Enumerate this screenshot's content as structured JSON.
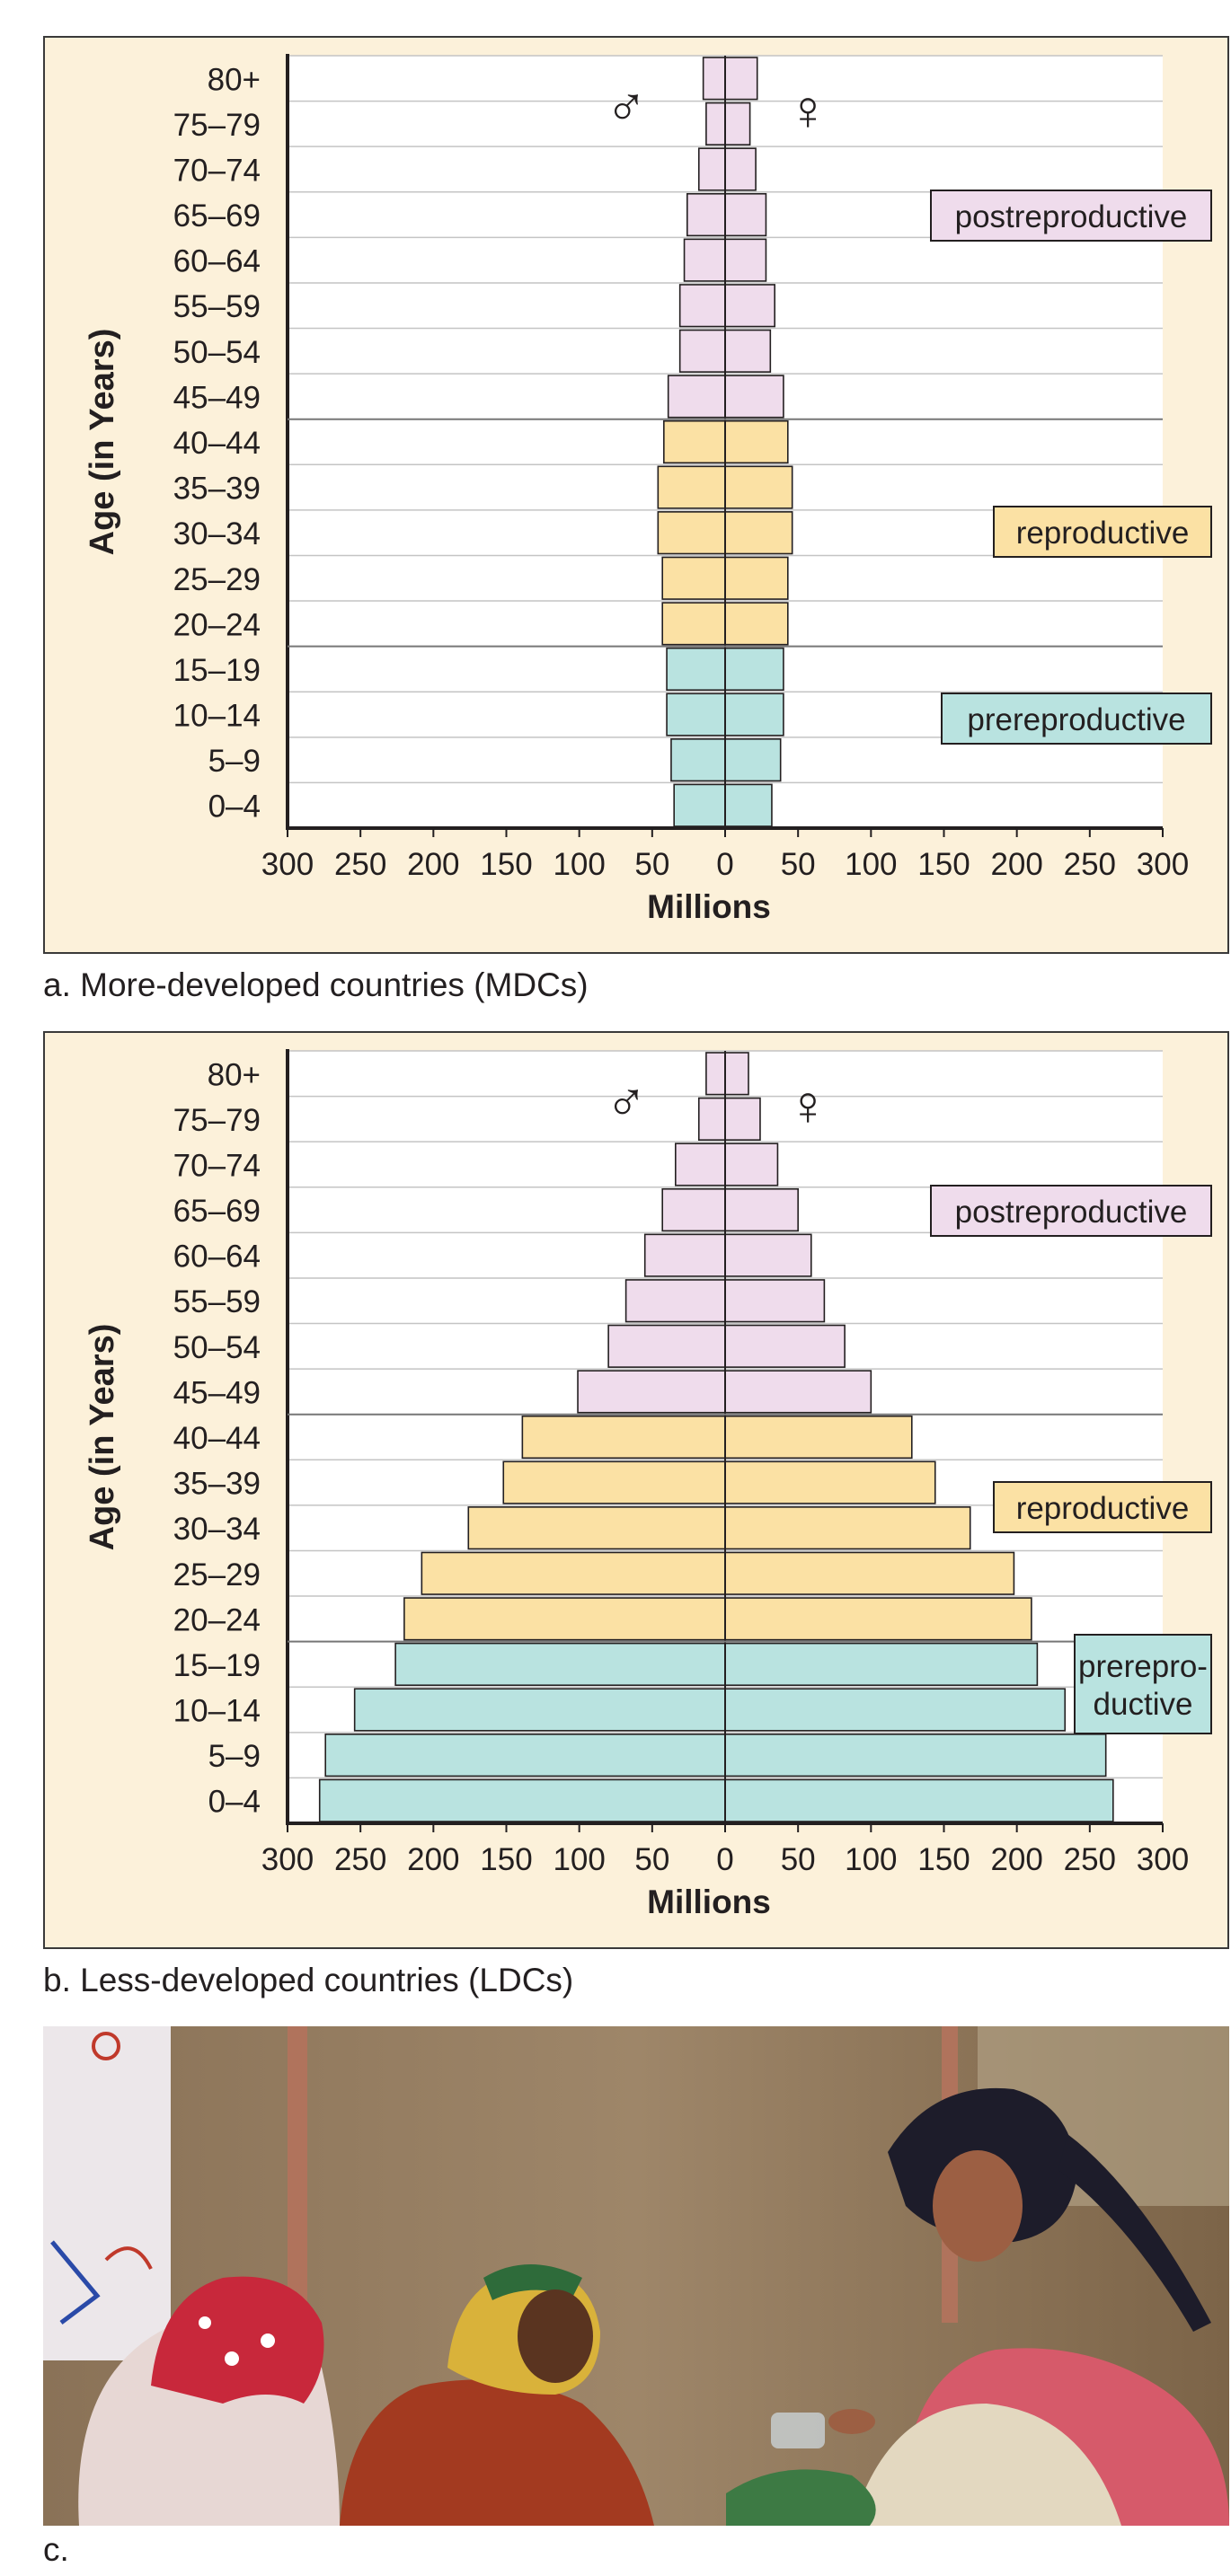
{
  "charts": [
    {
      "caption": "a. More-developed countries (MDCs)",
      "chart_data": {
        "type": "bar",
        "subtype": "population-pyramid",
        "title": "",
        "ylabel": "Age (in Years)",
        "xlabel": "Millions",
        "xlim": [
          -300,
          300
        ],
        "x_tick_labels": [
          "300",
          "250",
          "200",
          "150",
          "100",
          "50",
          "0",
          "50",
          "100",
          "150",
          "200",
          "250",
          "300"
        ],
        "categories": [
          "80+",
          "75–79",
          "70–74",
          "65–69",
          "60–64",
          "55–59",
          "50–54",
          "45–49",
          "40–44",
          "35–39",
          "30–34",
          "25–29",
          "20–24",
          "15–19",
          "10–14",
          "5–9",
          "0–4"
        ],
        "series": [
          {
            "symbol": "♂",
            "values": [
              15,
              13,
              18,
              26,
              28,
              31,
              31,
              39,
              42,
              46,
              46,
              43,
              43,
              40,
              40,
              37,
              35
            ]
          },
          {
            "symbol": "♀",
            "values": [
              22,
              17,
              21,
              28,
              28,
              34,
              31,
              40,
              43,
              46,
              46,
              43,
              43,
              40,
              40,
              38,
              32
            ]
          }
        ],
        "groups": [
          {
            "label": "postreproductive",
            "color": "#efdcec",
            "from": "80+",
            "to": "45–49"
          },
          {
            "label": "reproductive",
            "color": "#fbe1a4",
            "from": "40–44",
            "to": "20–24"
          },
          {
            "label": "prereproductive",
            "color": "#b9e3e0",
            "from": "15–19",
            "to": "0–4"
          }
        ],
        "grid": true
      }
    },
    {
      "caption": "b. Less-developed countries (LDCs)",
      "chart_data": {
        "type": "bar",
        "subtype": "population-pyramid",
        "title": "",
        "ylabel": "Age (in Years)",
        "xlabel": "Millions",
        "xlim": [
          -300,
          300
        ],
        "x_tick_labels": [
          "300",
          "250",
          "200",
          "150",
          "100",
          "50",
          "0",
          "50",
          "100",
          "150",
          "200",
          "250",
          "300"
        ],
        "categories": [
          "80+",
          "75–79",
          "70–74",
          "65–69",
          "60–64",
          "55–59",
          "50–54",
          "45–49",
          "40–44",
          "35–39",
          "30–34",
          "25–29",
          "20–24",
          "15–19",
          "10–14",
          "5–9",
          "0–4"
        ],
        "series": [
          {
            "symbol": "♂",
            "values": [
              13,
              18,
              34,
              43,
              55,
              68,
              80,
              101,
              139,
              152,
              176,
              208,
              220,
              226,
              254,
              274,
              278
            ]
          },
          {
            "symbol": "♀",
            "values": [
              16,
              24,
              36,
              50,
              59,
              68,
              82,
              100,
              128,
              144,
              168,
              198,
              210,
              214,
              233,
              261,
              266
            ]
          }
        ],
        "groups": [
          {
            "label": "postreproductive",
            "color": "#efdcec",
            "from": "80+",
            "to": "45–49"
          },
          {
            "label": "reproductive",
            "color": "#fbe1a4",
            "from": "40–44",
            "to": "20–24"
          },
          {
            "label": "prerepro-\nductive",
            "color": "#b9e3e0",
            "from": "15–19",
            "to": "0–4"
          }
        ],
        "grid": true
      }
    }
  ],
  "photo": {
    "caption": "c."
  },
  "colors": {
    "panel_bg": "#fcf1da",
    "plot_bg": "#ffffff",
    "post": "#efdcec",
    "repro": "#fbe1a4",
    "pre": "#b9e3e0",
    "stroke": "#231f20"
  }
}
